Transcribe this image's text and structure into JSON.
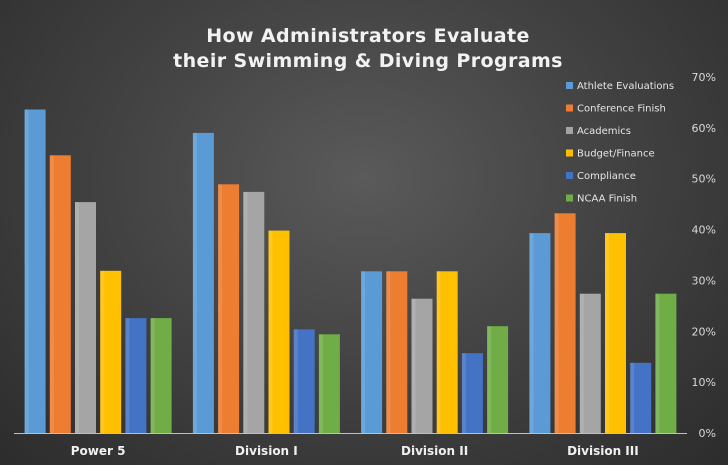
{
  "chart_data": {
    "type": "bar",
    "title": "How Administrators Evaluate their Swimming & Diving Programs",
    "title_lines": [
      "How Administrators Evaluate",
      "their Swimming & Diving Programs"
    ],
    "categories": [
      "Power 5",
      "Division I",
      "Division II",
      "Division III"
    ],
    "y_ticks": [
      "0%",
      "10%",
      "20%",
      "30%",
      "40%",
      "50%",
      "60%",
      "70%"
    ],
    "ylim": [
      0,
      70
    ],
    "y_axis_side": "right",
    "grid": false,
    "legend_position": "top-right",
    "series": [
      {
        "name": "Athlete Evaluations",
        "color": "#5b9bd5",
        "values": [
          63.6,
          59,
          31.8,
          39.3
        ]
      },
      {
        "name": "Conference Finish",
        "color": "#ed7d31",
        "values": [
          54.6,
          48.9,
          31.8,
          43.2
        ]
      },
      {
        "name": "Academics",
        "color": "#a5a5a5",
        "values": [
          45.4,
          47.4,
          26.4,
          27.4
        ]
      },
      {
        "name": "Budget/Finance",
        "color": "#ffc000",
        "values": [
          31.9,
          39.8,
          31.8,
          39.3
        ]
      },
      {
        "name": "Compliance",
        "color": "#4472c4",
        "values": [
          22.6,
          20.4,
          15.7,
          13.8
        ]
      },
      {
        "name": "NCAA Finish",
        "color": "#70ad47",
        "values": [
          22.6,
          19.4,
          21.0,
          27.4
        ]
      }
    ]
  }
}
